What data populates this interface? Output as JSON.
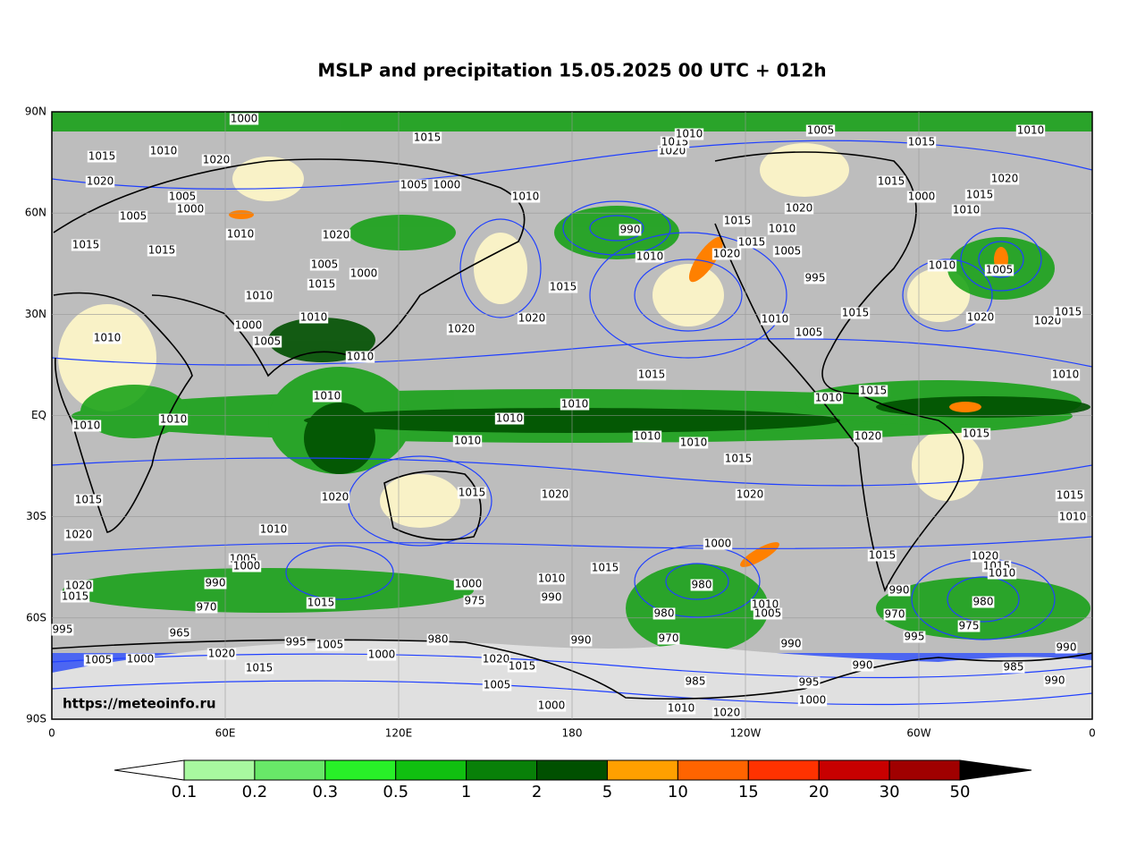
{
  "title": "MSLP and precipitation 15.05.2025 00 UTC + 012h",
  "lat_labels": [
    "90N",
    "60N",
    "30N",
    "EQ",
    "30S",
    "60S",
    "90S"
  ],
  "lon_labels": [
    "0",
    "60E",
    "120E",
    "180",
    "120W",
    "60W",
    "0"
  ],
  "watermark": "https://meteoinfo.ru",
  "colorbar": {
    "levels": [
      0.1,
      0.2,
      0.3,
      0.5,
      1,
      2,
      5,
      10,
      15,
      20,
      30,
      50
    ],
    "colors": [
      "#a8f8a0",
      "#68e868",
      "#28f028",
      "#10c010",
      "#088008",
      "#005000",
      "#ffa000",
      "#ff6400",
      "#ff3200",
      "#c80000",
      "#a00000"
    ],
    "under_color": "#ffffff",
    "over_color": "#000000"
  },
  "isobar_labels": [
    1000,
    1015,
    1010,
    1015,
    1020,
    1020,
    1005,
    1000,
    1005,
    1010,
    1020,
    1015,
    1015,
    1005,
    1000,
    1015,
    1010,
    1010,
    1000,
    1005,
    1010,
    1010,
    1010,
    1010,
    1010,
    1015,
    1020,
    1020,
    1015,
    1020,
    1010,
    1015,
    1010,
    1010,
    1015,
    1020,
    1020,
    1015,
    1010,
    990,
    1010,
    1010,
    1010,
    1010,
    1015,
    1020,
    1000,
    980,
    980,
    970,
    985,
    1010,
    1020,
    1015,
    1010,
    990,
    990,
    1000,
    975,
    980,
    1000,
    995,
    1005,
    965,
    995,
    1005,
    1000,
    1020,
    1015,
    1020,
    1015,
    990,
    970,
    1005,
    1000,
    1020,
    1015,
    1010,
    1005,
    1015,
    1010,
    1020,
    1015,
    1000,
    1015,
    1010,
    1020,
    1015,
    1010,
    1015,
    1005,
    995,
    1020,
    1010,
    1005,
    1015,
    1020,
    1020,
    1015,
    1010,
    1005,
    1010,
    1015,
    1010,
    1020,
    1015,
    1015,
    1010,
    1015,
    1020,
    1015,
    1010,
    990,
    970,
    980,
    975,
    995,
    990,
    985,
    990,
    990,
    990,
    995,
    1000,
    1010,
    1005,
    1000,
    1020,
    1005,
    1015,
    1005,
    1000
  ]
}
